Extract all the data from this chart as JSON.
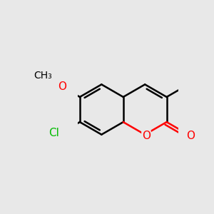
{
  "background_color": "#e8e8e8",
  "bond_color": "#000000",
  "bond_width": 1.8,
  "atom_colors": {
    "O": "#ff0000",
    "Cl": "#00bb00",
    "C": "#000000"
  },
  "font_size_atom": 11,
  "font_size_methyl": 10,
  "figsize": [
    3.0,
    3.0
  ],
  "dpi": 100
}
